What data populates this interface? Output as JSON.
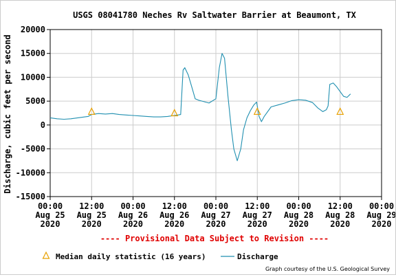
{
  "chart_data": {
    "type": "line",
    "title": "USGS 08041780 Neches Rv Saltwater Barrier at Beaumont, TX",
    "ylabel": "Discharge, cubic feet per second",
    "xlabel": "",
    "ylim": [
      -15000,
      20000
    ],
    "yticks": [
      20000,
      15000,
      10000,
      5000,
      0,
      -5000,
      -10000,
      -15000
    ],
    "ytick_labels": [
      "20000",
      "15000",
      "10000",
      "5000",
      "0",
      "-5000",
      "-10000",
      "-15000"
    ],
    "xlim": [
      0,
      96
    ],
    "x_unit": "hours since 00:00 Aug 25 2020",
    "xticks": [
      0,
      12,
      24,
      36,
      48,
      60,
      72,
      84,
      96
    ],
    "xtick_labels": [
      [
        "00:00",
        "Aug 25",
        "2020"
      ],
      [
        "12:00",
        "Aug 25",
        "2020"
      ],
      [
        "00:00",
        "Aug 26",
        "2020"
      ],
      [
        "12:00",
        "Aug 26",
        "2020"
      ],
      [
        "00:00",
        "Aug 27",
        "2020"
      ],
      [
        "12:00",
        "Aug 27",
        "2020"
      ],
      [
        "00:00",
        "Aug 28",
        "2020"
      ],
      [
        "12:00",
        "Aug 28",
        "2020"
      ],
      [
        "00:00",
        "Aug 29",
        "2020"
      ]
    ],
    "grid": true,
    "series": [
      {
        "name": "Discharge",
        "color": "#1f8fb0",
        "x": [
          0,
          2,
          4,
          6,
          8,
          10,
          11,
          12,
          14,
          16,
          18,
          20,
          22,
          24,
          26,
          28,
          30,
          32,
          34,
          35,
          36,
          37,
          37.8,
          38.5,
          39,
          40,
          41,
          42,
          43,
          44,
          45,
          46,
          48,
          49,
          49.8,
          50.5,
          51.5,
          52.5,
          53.2,
          54.2,
          55.2,
          56,
          57,
          58,
          59,
          59.8,
          60.5,
          61.2,
          62,
          64,
          66,
          68,
          70,
          72,
          74,
          76,
          77.5,
          79,
          80,
          80.5,
          81,
          82,
          83,
          84,
          85,
          86,
          87
        ],
        "y": [
          1500,
          1300,
          1200,
          1300,
          1500,
          1700,
          1800,
          2200,
          2400,
          2300,
          2400,
          2200,
          2100,
          2000,
          1900,
          1800,
          1700,
          1700,
          1800,
          1900,
          2000,
          2100,
          2200,
          11500,
          12000,
          10500,
          8000,
          5500,
          5200,
          5000,
          4800,
          4600,
          5500,
          12000,
          15000,
          14000,
          6000,
          -1000,
          -5000,
          -7500,
          -5000,
          -1000,
          1500,
          3000,
          4200,
          4800,
          1800,
          700,
          1800,
          3800,
          4200,
          4600,
          5100,
          5300,
          5200,
          4700,
          3600,
          2800,
          3200,
          4000,
          8500,
          8800,
          8000,
          7000,
          6000,
          5800,
          6500
        ]
      }
    ],
    "markers": {
      "name": "Median daily statistic (16 years)",
      "color": "#e8a000",
      "x": [
        12,
        36,
        60,
        84
      ],
      "y": [
        2800,
        2500,
        2800,
        2800
      ]
    }
  },
  "provisional_note": "---- Provisional Data Subject to Revision ----",
  "legend": {
    "median_label": "Median daily statistic (16 years)",
    "discharge_label": "Discharge"
  },
  "credit": "Graph courtesy of the U.S. Geological Survey"
}
